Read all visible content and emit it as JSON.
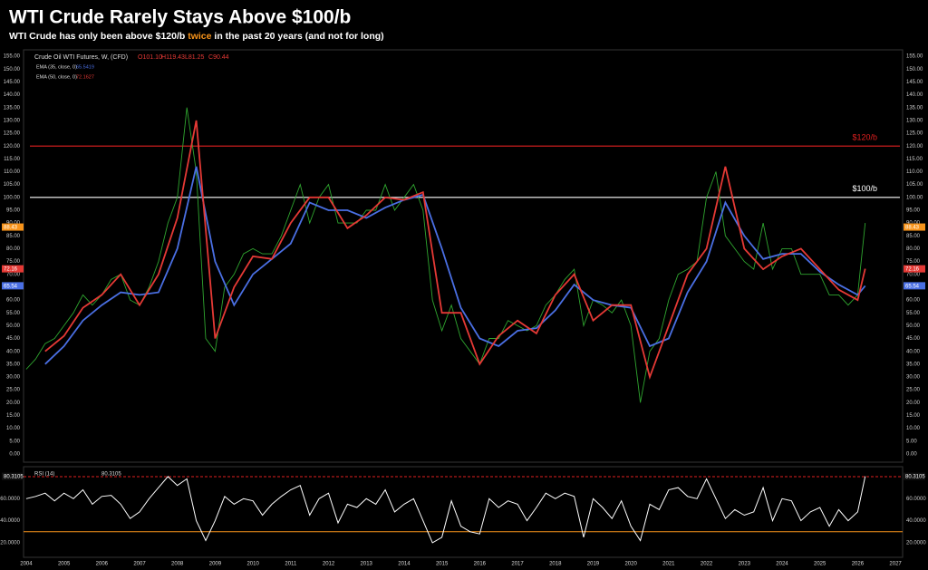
{
  "header": {
    "title": "WTI Crude Rarely Stays Above $100/b",
    "subtitle": [
      "WTI Crude has only been above $120/b ",
      "twice",
      " in the past 20 years (and not for long)"
    ]
  },
  "chart_data": [
    {
      "type": "line",
      "name": "Crude Oil WTI Futures, W, (CFD)",
      "ohlc": [
        {
          "key": "O",
          "value": 101.1,
          "label": "101.10"
        },
        {
          "key": "H",
          "value": 119.43,
          "label": "119.43"
        },
        {
          "key": "L",
          "value": 81.25,
          "label": "81.25"
        },
        {
          "key": "C",
          "value": 90.44,
          "label": "90.44"
        }
      ],
      "xlim": [
        2003.93,
        2027.19
      ],
      "xticks": [
        2004,
        2005,
        2006,
        2007,
        2008,
        2009,
        2010,
        2011,
        2012,
        2013,
        2014,
        2015,
        2016,
        2017,
        2018,
        2019,
        2020,
        2021,
        2022,
        2023,
        2024,
        2025,
        2026,
        2027
      ],
      "ylim": [
        -3.2,
        157.5
      ],
      "yticks": [
        {
          "value": 0,
          "label": "0.00"
        },
        {
          "value": 5,
          "label": "5.00"
        },
        {
          "value": 10,
          "label": "10.00"
        },
        {
          "value": 15,
          "label": "15.00"
        },
        {
          "value": 20,
          "label": "20.00"
        },
        {
          "value": 25,
          "label": "25.00"
        },
        {
          "value": 30,
          "label": "30.00"
        },
        {
          "value": 35,
          "label": "35.00"
        },
        {
          "value": 40,
          "label": "40.00"
        },
        {
          "value": 45,
          "label": "45.00"
        },
        {
          "value": 50,
          "label": "50.00"
        },
        {
          "value": 55,
          "label": "55.00"
        },
        {
          "value": 60,
          "label": "60.00"
        },
        {
          "value": 65,
          "label": "65.00"
        },
        {
          "value": 70,
          "label": "70.00"
        },
        {
          "value": 75,
          "label": "75.00"
        },
        {
          "value": 80,
          "label": "80.00"
        },
        {
          "value": 85,
          "label": "85.00"
        },
        {
          "value": 90,
          "label": "90.00"
        },
        {
          "value": 95,
          "label": "95.00"
        },
        {
          "value": 100,
          "label": "100.00"
        },
        {
          "value": 105,
          "label": "105.00"
        },
        {
          "value": 110,
          "label": "110.00"
        },
        {
          "value": 115,
          "label": "115.00"
        },
        {
          "value": 120,
          "label": "120.00"
        },
        {
          "value": 125,
          "label": "125.00"
        },
        {
          "value": 130,
          "label": "130.00"
        },
        {
          "value": 135,
          "label": "135.00"
        },
        {
          "value": 140,
          "label": "140.00"
        },
        {
          "value": 145,
          "label": "145.00"
        },
        {
          "value": 150,
          "label": "150.00"
        },
        {
          "value": 155,
          "label": "155.00"
        }
      ],
      "hlines": [
        {
          "value": 120,
          "label": "$120/b",
          "color": "#e02020"
        },
        {
          "value": 100,
          "label": "$100/b",
          "color": "#ffffff"
        }
      ],
      "badges": [
        {
          "value": 88.43,
          "color": "#f7931a"
        },
        {
          "value": 72.16,
          "color": "#e53935"
        },
        {
          "value": 65.54,
          "color": "#4a6fe3"
        }
      ],
      "price": {
        "color": "#2fa52f",
        "x": [
          2004,
          2004.25,
          2004.5,
          2004.75,
          2005,
          2005.25,
          2005.5,
          2005.75,
          2006,
          2006.25,
          2006.5,
          2006.75,
          2007,
          2007.25,
          2007.5,
          2007.75,
          2008,
          2008.25,
          2008.5,
          2008.75,
          2009,
          2009.25,
          2009.5,
          2009.75,
          2010,
          2010.25,
          2010.5,
          2010.75,
          2011,
          2011.25,
          2011.5,
          2011.75,
          2012,
          2012.25,
          2012.5,
          2012.75,
          2013,
          2013.25,
          2013.5,
          2013.75,
          2014,
          2014.25,
          2014.5,
          2014.75,
          2015,
          2015.25,
          2015.5,
          2015.75,
          2016,
          2016.25,
          2016.5,
          2016.75,
          2017,
          2017.25,
          2017.5,
          2017.75,
          2018,
          2018.25,
          2018.5,
          2018.75,
          2019,
          2019.25,
          2019.5,
          2019.75,
          2020,
          2020.25,
          2020.5,
          2020.75,
          2021,
          2021.25,
          2021.5,
          2021.75,
          2022,
          2022.25,
          2022.5,
          2022.75,
          2023,
          2023.25,
          2023.5,
          2023.75,
          2024,
          2024.25,
          2024.5,
          2024.75,
          2025,
          2025.25,
          2025.5,
          2025.75,
          2026,
          2026.2
        ],
        "values": [
          33,
          37,
          43,
          45,
          50,
          55,
          62,
          58,
          62,
          68,
          70,
          60,
          58,
          65,
          75,
          90,
          100,
          135,
          110,
          45,
          40,
          65,
          70,
          78,
          80,
          78,
          78,
          85,
          95,
          105,
          90,
          100,
          105,
          90,
          90,
          90,
          95,
          95,
          105,
          95,
          100,
          105,
          95,
          60,
          48,
          58,
          45,
          40,
          35,
          45,
          45,
          52,
          50,
          48,
          50,
          58,
          62,
          68,
          72,
          50,
          60,
          58,
          55,
          60,
          50,
          20,
          40,
          45,
          60,
          70,
          72,
          75,
          100,
          110,
          85,
          80,
          75,
          72,
          90,
          72,
          80,
          80,
          70,
          70,
          70,
          62,
          62,
          58,
          62,
          90
        ]
      },
      "series": [
        {
          "name": "EMA (35, close, 0)",
          "legend_value": 65.5419,
          "color": "#4a6fe3",
          "x": [
            2004.5,
            2005,
            2005.5,
            2006,
            2006.5,
            2007,
            2007.5,
            2008,
            2008.5,
            2009,
            2009.5,
            2010,
            2010.5,
            2011,
            2011.5,
            2012,
            2012.5,
            2013,
            2013.5,
            2014,
            2014.5,
            2015,
            2015.5,
            2016,
            2016.5,
            2017,
            2017.5,
            2018,
            2018.5,
            2019,
            2019.5,
            2020,
            2020.5,
            2021,
            2021.5,
            2022,
            2022.5,
            2023,
            2023.5,
            2024,
            2024.5,
            2025,
            2025.5,
            2026,
            2026.2
          ],
          "values": [
            35,
            42,
            52,
            58,
            63,
            62,
            63,
            80,
            112,
            75,
            58,
            70,
            76,
            82,
            98,
            95,
            95,
            92,
            96,
            99,
            101,
            80,
            57,
            45,
            42,
            48,
            49,
            56,
            66,
            60,
            58,
            57,
            42,
            45,
            63,
            75,
            98,
            85,
            76,
            78,
            78,
            71,
            66,
            62,
            65.54
          ]
        },
        {
          "name": "EMA (50, close, 0)",
          "legend_value": 72.1627,
          "color": "#e53935",
          "x": [
            2004.5,
            2005,
            2005.5,
            2006,
            2006.5,
            2007,
            2007.5,
            2008,
            2008.5,
            2009,
            2009.5,
            2010,
            2010.5,
            2011,
            2011.5,
            2012,
            2012.5,
            2013,
            2013.5,
            2014,
            2014.5,
            2015,
            2015.5,
            2016,
            2016.5,
            2017,
            2017.5,
            2018,
            2018.5,
            2019,
            2019.5,
            2020,
            2020.5,
            2021,
            2021.5,
            2022,
            2022.5,
            2023,
            2023.5,
            2024,
            2024.5,
            2025,
            2025.5,
            2026,
            2026.2
          ],
          "values": [
            40,
            46,
            57,
            62,
            70,
            58,
            70,
            92,
            130,
            45,
            65,
            77,
            76,
            90,
            100,
            100,
            88,
            93,
            100,
            99,
            102,
            55,
            55,
            35,
            46,
            52,
            47,
            62,
            70,
            52,
            58,
            58,
            30,
            50,
            70,
            80,
            112,
            80,
            72,
            77,
            80,
            72,
            64,
            60,
            72.16
          ]
        }
      ]
    },
    {
      "type": "line",
      "name": "RSI (14)",
      "legend_value": 80.3105,
      "xlim": [
        2003.93,
        2027.19
      ],
      "ylim": [
        6.8,
        89
      ],
      "yticks": [
        {
          "value": 20,
          "label": "20.0000"
        },
        {
          "value": 40,
          "label": "40.0000"
        },
        {
          "value": 60,
          "label": "60.0000"
        }
      ],
      "levels": [
        {
          "value": 80,
          "color": "#e02020",
          "dashed": true
        },
        {
          "value": 30,
          "color": "#f7931a",
          "dashed": false
        }
      ],
      "badge": {
        "value": 80.3105
      },
      "series": [
        {
          "name": "RSI",
          "color": "#ffffff",
          "x": [
            2004,
            2004.25,
            2004.5,
            2004.75,
            2005,
            2005.25,
            2005.5,
            2005.75,
            2006,
            2006.25,
            2006.5,
            2006.75,
            2007,
            2007.25,
            2007.5,
            2007.75,
            2008,
            2008.25,
            2008.5,
            2008.75,
            2009,
            2009.25,
            2009.5,
            2009.75,
            2010,
            2010.25,
            2010.5,
            2010.75,
            2011,
            2011.25,
            2011.5,
            2011.75,
            2012,
            2012.25,
            2012.5,
            2012.75,
            2013,
            2013.25,
            2013.5,
            2013.75,
            2014,
            2014.25,
            2014.5,
            2014.75,
            2015,
            2015.25,
            2015.5,
            2015.75,
            2016,
            2016.25,
            2016.5,
            2016.75,
            2017,
            2017.25,
            2017.5,
            2017.75,
            2018,
            2018.25,
            2018.5,
            2018.75,
            2019,
            2019.25,
            2019.5,
            2019.75,
            2020,
            2020.25,
            2020.5,
            2020.75,
            2021,
            2021.25,
            2021.5,
            2021.75,
            2022,
            2022.25,
            2022.5,
            2022.75,
            2023,
            2023.25,
            2023.5,
            2023.75,
            2024,
            2024.25,
            2024.5,
            2024.75,
            2025,
            2025.25,
            2025.5,
            2025.75,
            2026,
            2026.2
          ],
          "values": [
            60,
            62,
            65,
            58,
            65,
            60,
            68,
            55,
            62,
            63,
            55,
            42,
            48,
            60,
            70,
            80,
            72,
            78,
            40,
            22,
            40,
            62,
            55,
            60,
            58,
            45,
            55,
            62,
            68,
            72,
            45,
            60,
            65,
            38,
            55,
            52,
            60,
            55,
            68,
            48,
            55,
            60,
            40,
            20,
            25,
            58,
            35,
            30,
            28,
            60,
            52,
            58,
            55,
            40,
            52,
            65,
            60,
            65,
            62,
            25,
            60,
            52,
            42,
            58,
            35,
            22,
            55,
            50,
            68,
            70,
            62,
            60,
            78,
            60,
            42,
            50,
            45,
            48,
            70,
            40,
            60,
            58,
            40,
            48,
            52,
            35,
            50,
            40,
            48,
            80.31
          ]
        }
      ]
    }
  ]
}
